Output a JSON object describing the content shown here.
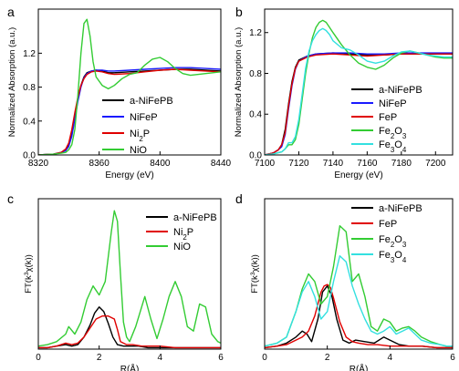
{
  "chart_data": [
    {
      "panel_label": "a",
      "type": "line",
      "xlabel": "Energy (eV)",
      "ylabel": "Normalized Absorption (a.u.)",
      "xlim": [
        8320,
        8440
      ],
      "ylim": [
        0,
        1.72
      ],
      "x_ticks": [
        "8320",
        "8360",
        "8400",
        "8440"
      ],
      "x_tick_values": [
        8320,
        8360,
        8400,
        8440
      ],
      "y_ticks": [
        "0.0",
        "0.4",
        "0.8",
        "1.2"
      ],
      "y_tick_values": [
        0,
        0.4,
        0.8,
        1.2
      ],
      "legend_position": "bottom-center",
      "series": [
        {
          "name": "a-NiFePB",
          "color": "#000000",
          "x": [
            8320,
            8330,
            8335,
            8338,
            8340,
            8342,
            8344,
            8346,
            8348,
            8350,
            8352,
            8355,
            8358,
            8362,
            8366,
            8370,
            8380,
            8390,
            8400,
            8410,
            8420,
            8430,
            8440
          ],
          "y": [
            0,
            0.01,
            0.03,
            0.06,
            0.12,
            0.25,
            0.45,
            0.66,
            0.82,
            0.92,
            0.97,
            0.99,
            1.0,
            0.99,
            0.97,
            0.97,
            0.98,
            0.99,
            1.0,
            1.01,
            1.01,
            1.0,
            0.99
          ]
        },
        {
          "name": "NiFeP",
          "color": "#1a1aff",
          "x": [
            8320,
            8330,
            8335,
            8338,
            8340,
            8342,
            8344,
            8346,
            8348,
            8350,
            8352,
            8355,
            8358,
            8362,
            8366,
            8370,
            8380,
            8390,
            8400,
            8410,
            8420,
            8430,
            8440
          ],
          "y": [
            0,
            0.01,
            0.03,
            0.05,
            0.1,
            0.22,
            0.42,
            0.63,
            0.8,
            0.91,
            0.96,
            0.99,
            1.0,
            1.0,
            0.99,
            0.99,
            1.0,
            1.01,
            1.02,
            1.03,
            1.03,
            1.02,
            1.01
          ]
        },
        {
          "name": "Ni2P",
          "color": "#e00000",
          "x": [
            8320,
            8330,
            8335,
            8338,
            8340,
            8342,
            8344,
            8346,
            8348,
            8350,
            8352,
            8355,
            8358,
            8362,
            8366,
            8370,
            8380,
            8390,
            8400,
            8410,
            8420,
            8430,
            8440
          ],
          "y": [
            0,
            0.01,
            0.03,
            0.07,
            0.14,
            0.3,
            0.5,
            0.68,
            0.82,
            0.9,
            0.95,
            0.98,
            0.99,
            0.98,
            0.96,
            0.95,
            0.96,
            0.98,
            1.0,
            1.01,
            1.0,
            0.99,
            0.98
          ]
        },
        {
          "name": "NiO",
          "color": "#33cc33",
          "x": [
            8320,
            8330,
            8335,
            8338,
            8340,
            8342,
            8344,
            8346,
            8348,
            8350,
            8352,
            8354,
            8356,
            8358,
            8362,
            8366,
            8370,
            8375,
            8380,
            8385,
            8390,
            8395,
            8400,
            8405,
            8410,
            8415,
            8420,
            8430,
            8440
          ],
          "y": [
            0,
            0.01,
            0.02,
            0.03,
            0.06,
            0.12,
            0.3,
            0.7,
            1.2,
            1.55,
            1.6,
            1.4,
            1.1,
            0.92,
            0.82,
            0.78,
            0.82,
            0.9,
            0.95,
            0.97,
            1.06,
            1.13,
            1.15,
            1.1,
            1.02,
            0.96,
            0.94,
            0.96,
            0.98
          ]
        }
      ]
    },
    {
      "panel_label": "b",
      "type": "line",
      "xlabel": "Energy (eV)",
      "ylabel": "Normalized Absorption (a.u.)",
      "xlim": [
        7100,
        7210
      ],
      "ylim": [
        0,
        1.43
      ],
      "x_ticks": [
        "7100",
        "7120",
        "7140",
        "7160",
        "7180",
        "7200"
      ],
      "x_tick_values": [
        7100,
        7120,
        7140,
        7160,
        7180,
        7200
      ],
      "y_ticks": [
        "0.0",
        "0.4",
        "0.8",
        "1.2"
      ],
      "y_tick_values": [
        0,
        0.4,
        0.8,
        1.2
      ],
      "legend_position": "bottom-right",
      "series": [
        {
          "name": "a-NiFePB",
          "color": "#000000",
          "x": [
            7100,
            7105,
            7108,
            7110,
            7112,
            7114,
            7116,
            7118,
            7120,
            7125,
            7130,
            7140,
            7150,
            7160,
            7170,
            7180,
            7190,
            7200,
            7210
          ],
          "y": [
            0,
            0.02,
            0.05,
            0.1,
            0.25,
            0.5,
            0.72,
            0.86,
            0.93,
            0.97,
            0.99,
            1.0,
            0.99,
            0.98,
            0.98,
            0.99,
            0.99,
            0.99,
            0.99
          ]
        },
        {
          "name": "NiFeP",
          "color": "#1a1aff",
          "x": [
            7100,
            7105,
            7108,
            7110,
            7112,
            7114,
            7116,
            7118,
            7120,
            7125,
            7130,
            7140,
            7150,
            7160,
            7170,
            7180,
            7190,
            7200,
            7210
          ],
          "y": [
            0,
            0.02,
            0.05,
            0.08,
            0.2,
            0.45,
            0.68,
            0.84,
            0.92,
            0.97,
            0.99,
            1.0,
            1.0,
            0.99,
            0.99,
            1.0,
            1.0,
            1.0,
            1.0
          ]
        },
        {
          "name": "FeP",
          "color": "#e00000",
          "x": [
            7100,
            7105,
            7108,
            7110,
            7112,
            7114,
            7116,
            7118,
            7120,
            7125,
            7130,
            7140,
            7150,
            7160,
            7170,
            7180,
            7190,
            7200,
            7210
          ],
          "y": [
            0,
            0.02,
            0.05,
            0.1,
            0.22,
            0.48,
            0.7,
            0.85,
            0.92,
            0.96,
            0.98,
            0.99,
            0.98,
            0.97,
            0.98,
            0.99,
            0.99,
            0.99,
            0.99
          ]
        },
        {
          "name": "Fe2O3",
          "color": "#33cc33",
          "x": [
            7100,
            7105,
            7110,
            7112,
            7114,
            7116,
            7118,
            7120,
            7122,
            7124,
            7126,
            7128,
            7130,
            7132,
            7134,
            7136,
            7138,
            7140,
            7145,
            7150,
            7155,
            7160,
            7165,
            7170,
            7175,
            7180,
            7185,
            7190,
            7195,
            7200,
            7205,
            7210
          ],
          "y": [
            0,
            0.01,
            0.03,
            0.06,
            0.1,
            0.1,
            0.15,
            0.3,
            0.55,
            0.8,
            1.0,
            1.15,
            1.25,
            1.3,
            1.32,
            1.3,
            1.25,
            1.2,
            1.08,
            0.98,
            0.9,
            0.86,
            0.84,
            0.88,
            0.95,
            1.0,
            1.02,
            1.0,
            0.98,
            0.96,
            0.95,
            0.95
          ]
        },
        {
          "name": "Fe3O4",
          "color": "#33e0e0",
          "x": [
            7100,
            7105,
            7110,
            7112,
            7114,
            7116,
            7118,
            7120,
            7122,
            7124,
            7126,
            7128,
            7130,
            7132,
            7134,
            7136,
            7138,
            7140,
            7145,
            7150,
            7155,
            7160,
            7165,
            7170,
            7175,
            7180,
            7185,
            7190,
            7195,
            7200,
            7205,
            7210
          ],
          "y": [
            0,
            0.01,
            0.03,
            0.06,
            0.12,
            0.12,
            0.18,
            0.35,
            0.6,
            0.85,
            1.02,
            1.12,
            1.18,
            1.22,
            1.24,
            1.22,
            1.18,
            1.12,
            1.05,
            1.03,
            0.98,
            0.92,
            0.9,
            0.92,
            0.97,
            1.01,
            1.02,
            1.0,
            0.98,
            0.97,
            0.96,
            0.96
          ]
        }
      ]
    },
    {
      "panel_label": "c",
      "type": "line",
      "xlabel": "R(Å)",
      "ylabel": "FT(k³χ(k))",
      "xlim": [
        0,
        6
      ],
      "ylim": [
        0,
        1.0
      ],
      "x_ticks": [
        "0",
        "2",
        "4",
        "6"
      ],
      "x_tick_values": [
        0,
        2,
        4,
        6
      ],
      "legend_position": "top-right",
      "series": [
        {
          "name": "a-NiFePB",
          "color": "#000000",
          "x": [
            0,
            0.3,
            0.6,
            0.9,
            1.1,
            1.3,
            1.5,
            1.7,
            1.85,
            2.0,
            2.15,
            2.3,
            2.45,
            2.6,
            2.8,
            3.0,
            3.3,
            3.6,
            4.0,
            4.5,
            5.0,
            5.5,
            6.0
          ],
          "y": [
            0.01,
            0.01,
            0.02,
            0.03,
            0.02,
            0.03,
            0.08,
            0.16,
            0.24,
            0.28,
            0.25,
            0.17,
            0.08,
            0.03,
            0.02,
            0.02,
            0.02,
            0.01,
            0.01,
            0.01,
            0.01,
            0.01,
            0.01
          ]
        },
        {
          "name": "Ni2P",
          "color": "#e00000",
          "x": [
            0,
            0.3,
            0.6,
            0.9,
            1.1,
            1.3,
            1.5,
            1.7,
            1.9,
            2.1,
            2.3,
            2.5,
            2.6,
            2.7,
            2.9,
            3.1,
            3.4,
            3.7,
            4.0,
            4.5,
            5.0,
            5.5,
            6.0
          ],
          "y": [
            0.01,
            0.01,
            0.02,
            0.04,
            0.03,
            0.04,
            0.08,
            0.14,
            0.2,
            0.22,
            0.22,
            0.2,
            0.13,
            0.05,
            0.03,
            0.03,
            0.02,
            0.02,
            0.02,
            0.01,
            0.01,
            0.01,
            0.01
          ]
        },
        {
          "name": "NiO",
          "color": "#33cc33",
          "x": [
            0,
            0.3,
            0.6,
            0.9,
            1.0,
            1.2,
            1.4,
            1.6,
            1.8,
            2.0,
            2.2,
            2.4,
            2.5,
            2.6,
            2.7,
            2.8,
            2.9,
            3.0,
            3.2,
            3.5,
            3.7,
            3.9,
            4.1,
            4.3,
            4.5,
            4.7,
            4.9,
            5.1,
            5.3,
            5.5,
            5.7,
            5.9,
            6.0
          ],
          "y": [
            0.02,
            0.03,
            0.05,
            0.1,
            0.15,
            0.1,
            0.18,
            0.33,
            0.42,
            0.36,
            0.45,
            0.78,
            0.92,
            0.85,
            0.5,
            0.18,
            0.08,
            0.05,
            0.15,
            0.35,
            0.2,
            0.07,
            0.2,
            0.35,
            0.45,
            0.35,
            0.15,
            0.12,
            0.3,
            0.28,
            0.1,
            0.05,
            0.04
          ]
        }
      ]
    },
    {
      "panel_label": "d",
      "type": "line",
      "xlabel": "R(Å)",
      "ylabel": "FT(k³χ(k))",
      "xlim": [
        0,
        6
      ],
      "ylim": [
        0,
        1.0
      ],
      "x_ticks": [
        "0",
        "2",
        "4",
        "6"
      ],
      "x_tick_values": [
        0,
        2,
        4,
        6
      ],
      "legend_position": "top-right",
      "series": [
        {
          "name": "a-NiFePB",
          "color": "#000000",
          "x": [
            0,
            0.4,
            0.7,
            1.0,
            1.2,
            1.35,
            1.5,
            1.7,
            1.85,
            2.0,
            2.15,
            2.3,
            2.5,
            2.7,
            2.9,
            3.2,
            3.5,
            3.8,
            4.0,
            4.3,
            4.6,
            5.0,
            5.5,
            6.0
          ],
          "y": [
            0.01,
            0.02,
            0.04,
            0.08,
            0.12,
            0.1,
            0.05,
            0.2,
            0.38,
            0.42,
            0.35,
            0.2,
            0.06,
            0.04,
            0.06,
            0.05,
            0.04,
            0.08,
            0.06,
            0.03,
            0.02,
            0.02,
            0.01,
            0.01
          ]
        },
        {
          "name": "FeP",
          "color": "#e00000",
          "x": [
            0,
            0.4,
            0.7,
            1.0,
            1.2,
            1.4,
            1.6,
            1.8,
            1.9,
            2.0,
            2.1,
            2.2,
            2.4,
            2.6,
            2.8,
            3.0,
            3.3,
            3.6,
            4.0,
            4.5,
            5.0,
            5.5,
            6.0
          ],
          "y": [
            0.01,
            0.02,
            0.03,
            0.06,
            0.08,
            0.12,
            0.22,
            0.38,
            0.42,
            0.43,
            0.41,
            0.34,
            0.18,
            0.08,
            0.05,
            0.04,
            0.03,
            0.03,
            0.02,
            0.02,
            0.02,
            0.01,
            0.01
          ]
        },
        {
          "name": "Fe2O3",
          "color": "#33cc33",
          "x": [
            0,
            0.4,
            0.7,
            1.0,
            1.2,
            1.4,
            1.6,
            1.8,
            2.0,
            2.2,
            2.4,
            2.6,
            2.8,
            3.0,
            3.2,
            3.4,
            3.6,
            3.8,
            4.0,
            4.2,
            4.4,
            4.6,
            4.8,
            5.0,
            5.3,
            5.6,
            5.8,
            6.0
          ],
          "y": [
            0.02,
            0.04,
            0.08,
            0.25,
            0.4,
            0.5,
            0.45,
            0.3,
            0.35,
            0.55,
            0.82,
            0.78,
            0.45,
            0.5,
            0.35,
            0.15,
            0.12,
            0.2,
            0.18,
            0.12,
            0.14,
            0.15,
            0.12,
            0.08,
            0.05,
            0.03,
            0.02,
            0.02
          ]
        },
        {
          "name": "Fe3O4",
          "color": "#33e0e0",
          "x": [
            0,
            0.4,
            0.7,
            1.0,
            1.2,
            1.4,
            1.6,
            1.8,
            2.0,
            2.2,
            2.4,
            2.6,
            2.8,
            3.0,
            3.2,
            3.4,
            3.6,
            3.8,
            4.0,
            4.2,
            4.4,
            4.6,
            4.8,
            5.0,
            5.3,
            5.6,
            5.8,
            6.0
          ],
          "y": [
            0.02,
            0.04,
            0.08,
            0.25,
            0.38,
            0.45,
            0.35,
            0.2,
            0.25,
            0.45,
            0.62,
            0.58,
            0.42,
            0.3,
            0.2,
            0.12,
            0.1,
            0.12,
            0.15,
            0.1,
            0.12,
            0.14,
            0.1,
            0.06,
            0.04,
            0.03,
            0.02,
            0.02
          ]
        }
      ]
    }
  ]
}
